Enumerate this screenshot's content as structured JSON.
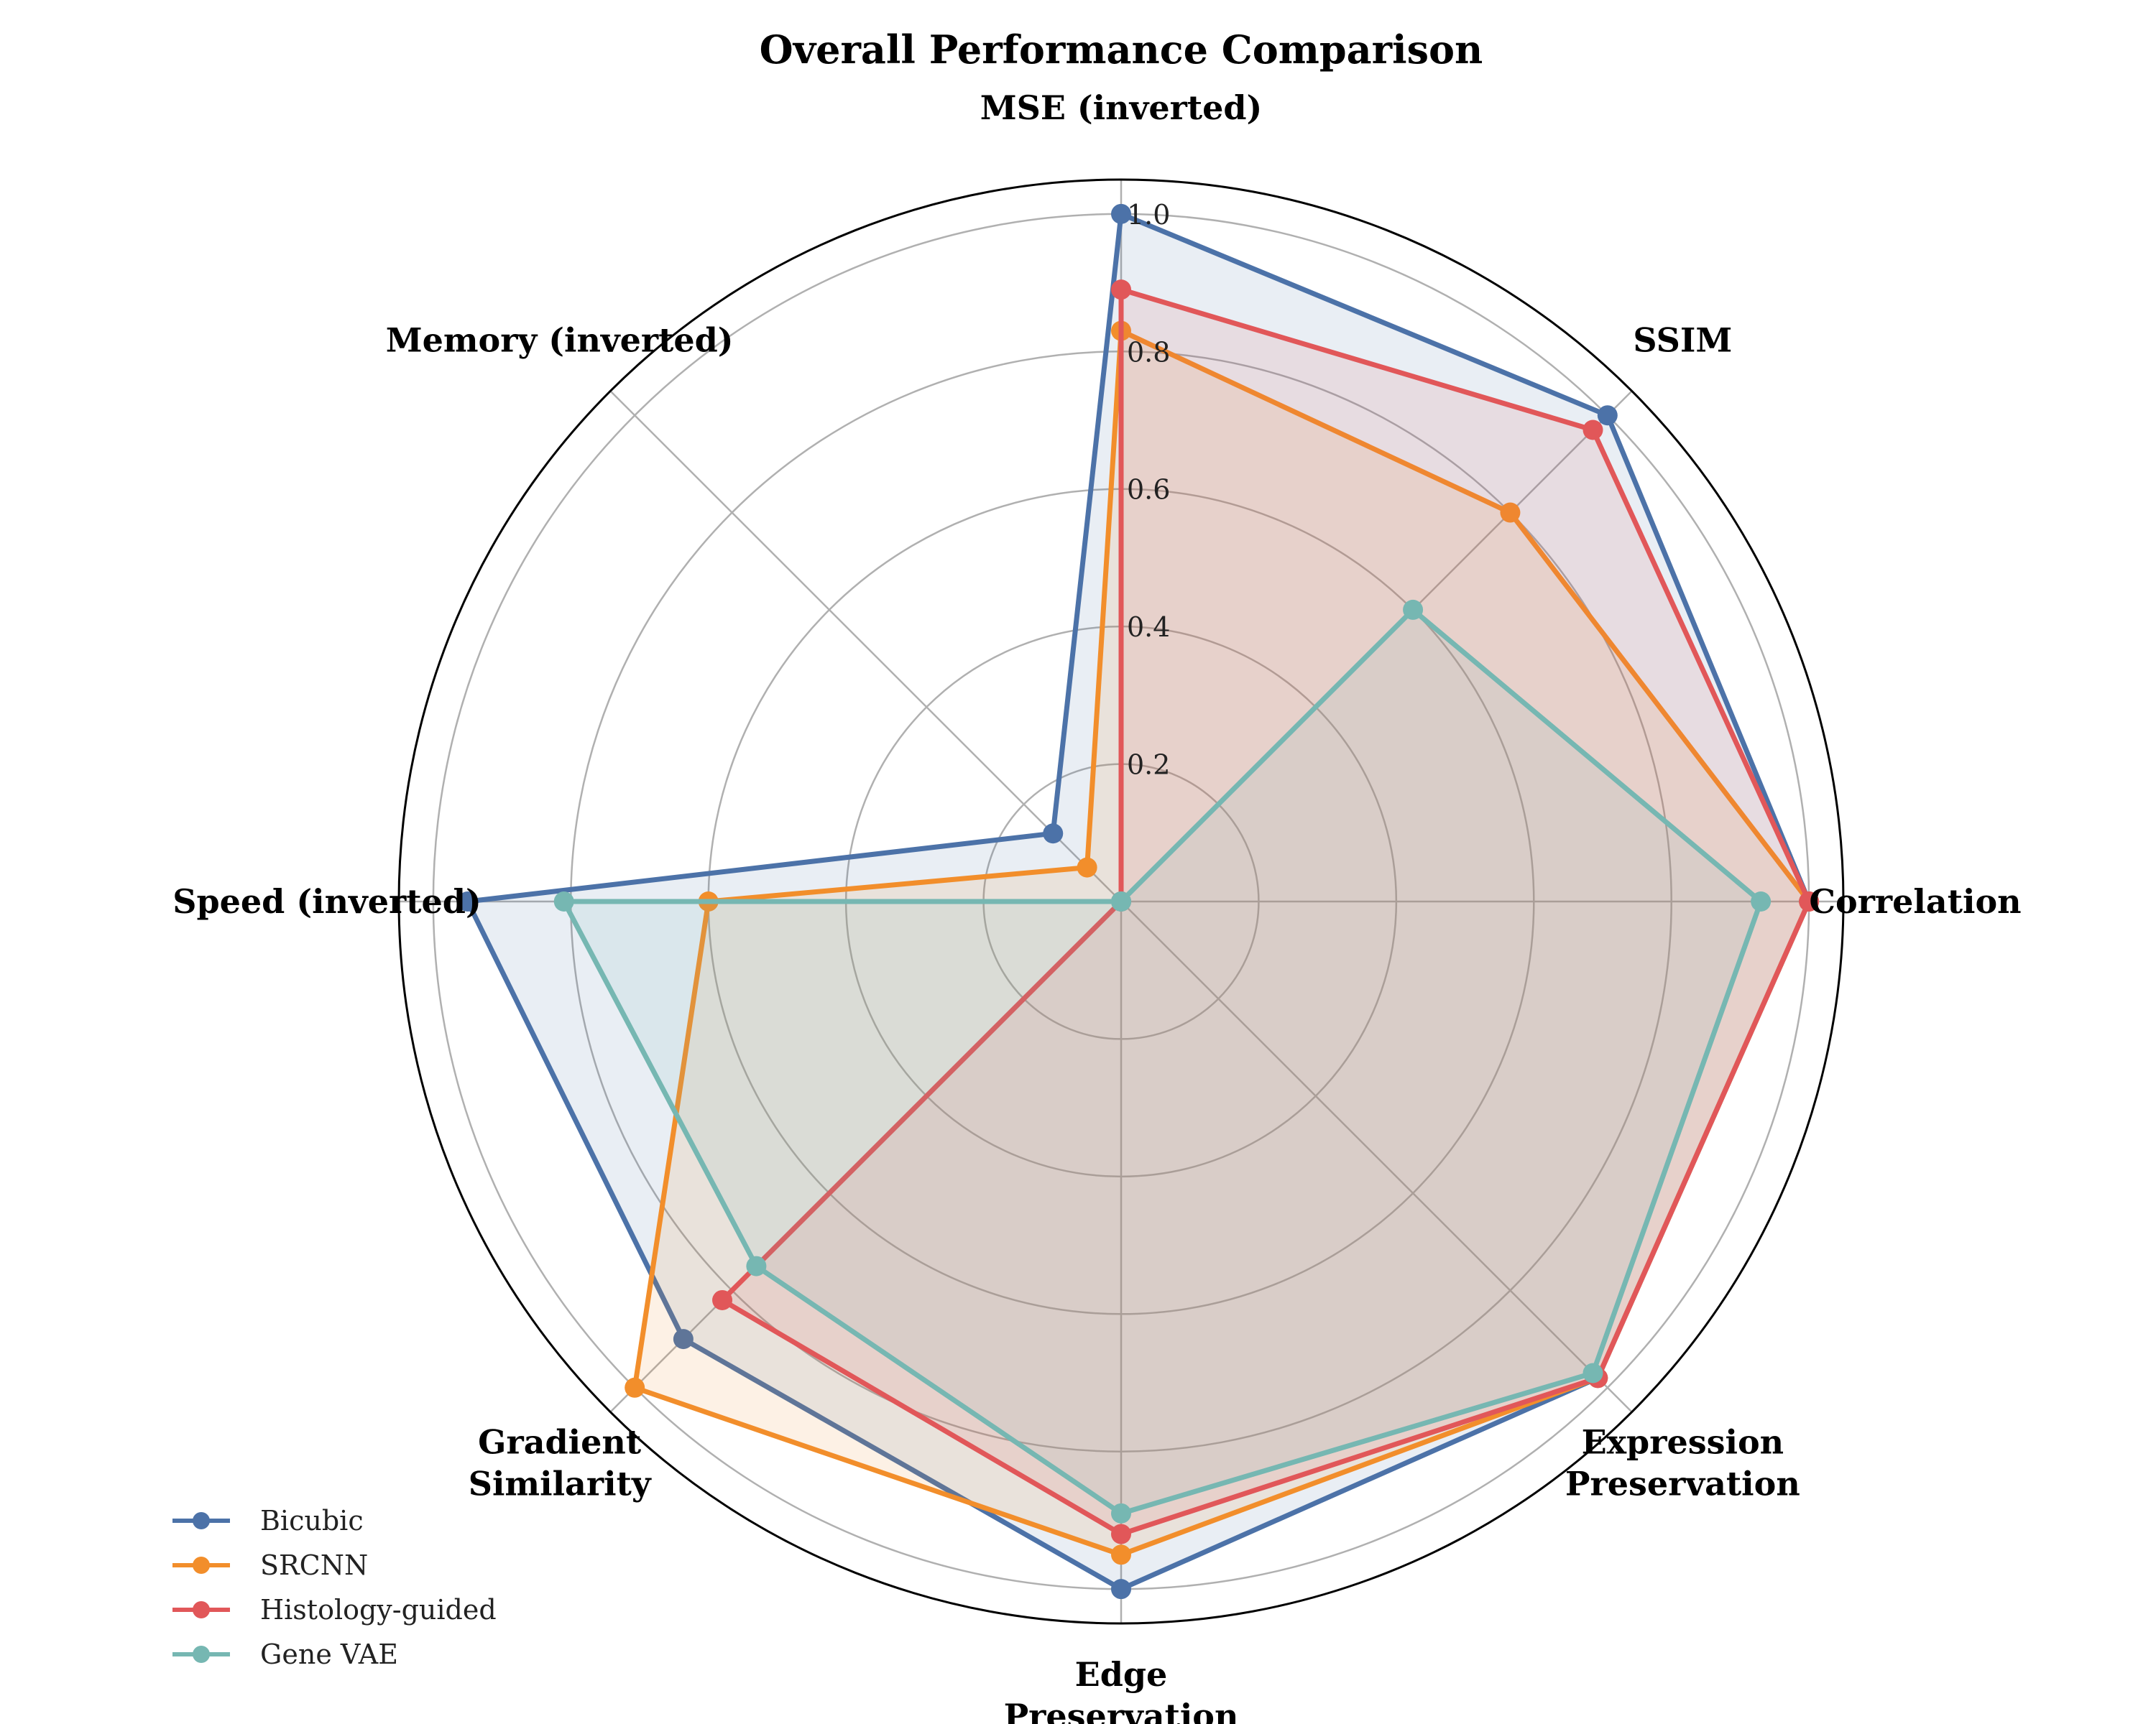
{
  "chart_data": {
    "type": "radar",
    "title": "Overall Performance Comparison",
    "categories": [
      "MSE (inverted)",
      "SSIM",
      "Correlation",
      "Expression\nPreservation",
      "Edge\nPreservation",
      "Gradient\nSimilarity",
      "Speed (inverted)",
      "Memory (inverted)"
    ],
    "rlim": [
      0,
      1.05
    ],
    "rticks": [
      "0.2",
      "0.4",
      "0.6",
      "0.8",
      "1.0"
    ],
    "rtick_values": [
      0.2,
      0.4,
      0.6,
      0.8,
      1.0
    ],
    "grid": true,
    "legend_placement": "lower-left",
    "series": [
      {
        "name": "Bicubic",
        "color": "#4C72A8",
        "values": [
          1.0,
          1.0,
          1.0,
          0.98,
          1.0,
          0.9,
          0.95,
          0.14
        ]
      },
      {
        "name": "SRCNN",
        "color": "#F28E2B",
        "values": [
          0.83,
          0.8,
          1.0,
          0.98,
          0.95,
          1.0,
          0.6,
          0.07
        ]
      },
      {
        "name": "Histology-guided",
        "color": "#E15759",
        "values": [
          0.89,
          0.97,
          1.0,
          0.98,
          0.92,
          0.82,
          0.0,
          0.0
        ]
      },
      {
        "name": "Gene VAE",
        "color": "#76B7B2",
        "values": [
          0.0,
          0.6,
          0.93,
          0.97,
          0.89,
          0.75,
          0.81,
          0.0
        ]
      }
    ]
  }
}
